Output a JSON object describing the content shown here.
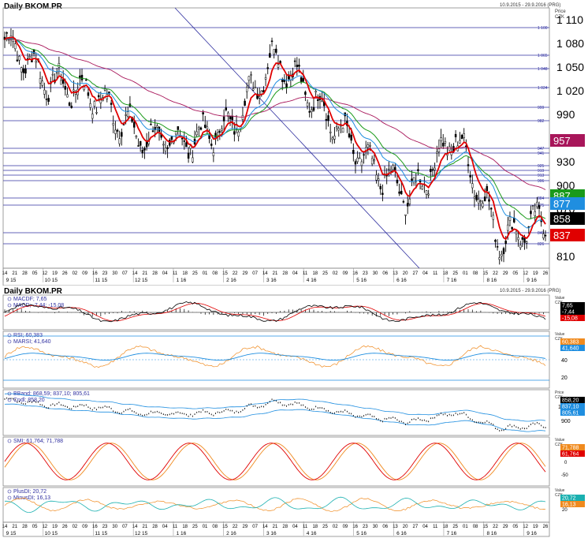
{
  "main": {
    "title": "Daily BKOM.PR",
    "date_range": "10.9.2015 - 29.9.2016 (PRG)",
    "axis_caption": "Price",
    "axis_unit": "CZK",
    "price_ticks": [
      "1 110",
      "1 080",
      "1 050",
      "1 020",
      "990",
      "930",
      "900",
      "870",
      "810"
    ],
    "hline_labels": [
      "1 100",
      "1 065",
      "1 048",
      "1 024",
      "999",
      "982",
      "947",
      "941",
      "925",
      "919",
      "913",
      "906",
      "884",
      "875",
      "840",
      "826"
    ],
    "price_badges": [
      {
        "text": "957",
        "color": "#a8165a"
      },
      {
        "text": "887",
        "color": "#1a9a1a"
      },
      {
        "text": "877",
        "color": "#1f8ee0"
      },
      {
        "text": "858",
        "color": "#000000"
      },
      {
        "text": "837",
        "color": "#e00000"
      }
    ]
  },
  "x_axis": {
    "days": [
      "14",
      "21",
      "28",
      "05",
      "12",
      "19",
      "26",
      "02",
      "09",
      "16",
      "23",
      "30",
      "07",
      "14",
      "21",
      "28",
      "04",
      "11",
      "18",
      "25",
      "01",
      "08",
      "15",
      "22",
      "29",
      "07",
      "14",
      "21",
      "28",
      "04",
      "11",
      "18",
      "25",
      "02",
      "09",
      "16",
      "23",
      "30",
      "06",
      "13",
      "20",
      "27",
      "04",
      "11",
      "18",
      "25",
      "01",
      "08",
      "15",
      "22",
      "29",
      "05",
      "12",
      "19",
      "26"
    ],
    "months": [
      "9 15",
      "10 15",
      "11 15",
      "12 15",
      "1 16",
      "2 16",
      "3 16",
      "4 16",
      "5 16",
      "6 16",
      "7 16",
      "8 16",
      "9 16"
    ]
  },
  "indicators": {
    "title": "Daily BKOM.PR",
    "date_range": "10.9.2015 - 29.9.2016 (PRG)",
    "macd": {
      "legend": [
        "MACDF; 7,65",
        "MACD; -7,44; -15,08"
      ],
      "axis_caption": "Value",
      "axis_unit": "CZK",
      "badges": [
        {
          "text": "7,65",
          "color": "#000000"
        },
        {
          "text": "-7,44",
          "color": "#000000"
        },
        {
          "text": "-15,08",
          "color": "#e00000"
        }
      ]
    },
    "rsi": {
      "legend": [
        "RSI; 60,383",
        "MARSI; 41,640"
      ],
      "axis_caption": "Value",
      "axis_unit": "CZK",
      "ticks": [
        "60",
        "40",
        "20"
      ],
      "badges": [
        {
          "text": "60,383",
          "color": "#f08a1e"
        },
        {
          "text": "41,640",
          "color": "#1f8ee0"
        }
      ]
    },
    "bband": {
      "legend": [
        "BBand; 868,59; 837,10; 805,61",
        "Cndl; 858,20"
      ],
      "axis_caption": "Price",
      "axis_unit": "CZK",
      "ticks": [
        "1 000",
        "900"
      ],
      "badges": [
        {
          "text": "858,20",
          "color": "#000000"
        },
        {
          "text": "837,10",
          "color": "#1f8ee0"
        },
        {
          "text": "805,61",
          "color": "#1f8ee0"
        }
      ]
    },
    "smi": {
      "legend": [
        "SMI; 61,764; 71,788"
      ],
      "axis_caption": "Value",
      "axis_unit": "CZK",
      "ticks": [
        "50",
        "0",
        "-50"
      ],
      "badges": [
        {
          "text": "71,788",
          "color": "#f08a1e"
        },
        {
          "text": "61,764",
          "color": "#e00000"
        }
      ]
    },
    "dmi": {
      "legend": [
        "PlusDI; 20,72",
        "MinusDI; 16,13"
      ],
      "axis_caption": "Value",
      "axis_unit": "CZK",
      "ticks": [
        "20"
      ],
      "badges": [
        {
          "text": "20,72",
          "color": "#1ab0b0"
        },
        {
          "text": "16,13",
          "color": "#f08a1e"
        }
      ]
    }
  },
  "chart_data": {
    "type": "line",
    "title": "Daily BKOM.PR",
    "period": "10.9.2015 - 29.9.2016",
    "y_unit": "CZK",
    "ylim": [
      795,
      1125
    ],
    "x": [
      "9 15",
      "10 15",
      "11 15",
      "12 15",
      "1 16",
      "2 16",
      "3 16",
      "4 16",
      "5 16",
      "6 16",
      "7 16",
      "8 16",
      "9 16"
    ],
    "series": [
      {
        "name": "Cndl",
        "values": [
          1085,
          1030,
          1015,
          960,
          955,
          975,
          1065,
          1000,
          930,
          885,
          965,
          830,
          858
        ]
      }
    ],
    "hlines": [
      1100,
      1065,
      1048,
      1024,
      999,
      982,
      947,
      941,
      925,
      919,
      913,
      906,
      884,
      875,
      840,
      826
    ],
    "last_values": {
      "close": 858,
      "ma_fast": 837,
      "ma_mid": 877,
      "ma_slow": 887,
      "ma_long": 957
    },
    "colors": {
      "close": "#000000",
      "ma_fast": "#e00000",
      "ma_mid": "#1f8ee0",
      "ma_slow": "#1a9a1a",
      "ma_long": "#a8165a",
      "hline": "#3030a0"
    }
  }
}
